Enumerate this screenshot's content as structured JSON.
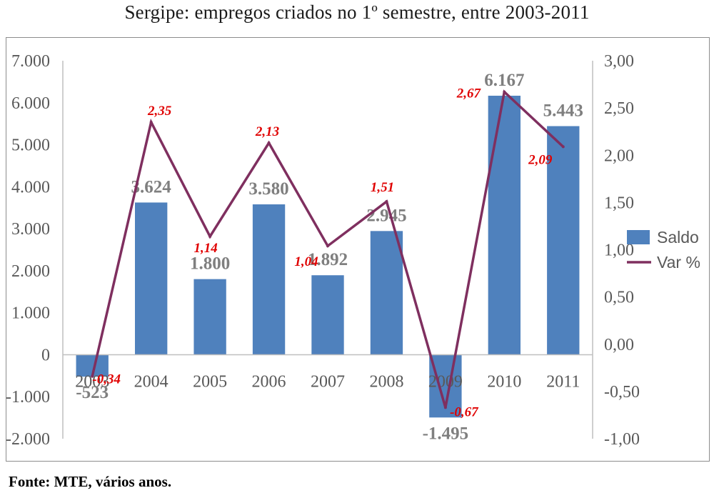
{
  "title": "Sergipe: empregos criados no 1º semestre, entre 2003-2011",
  "source": "Fonte: MTE, vários anos.",
  "colors": {
    "bar": "#4f81bd",
    "line": "#7f2f5f",
    "bar_label": "#7f7f7f",
    "line_label": "#e00000",
    "axis_text": "#595959",
    "gridline": "#bfbfbf"
  },
  "chart_data": {
    "type": "bar",
    "categories": [
      "2003",
      "2004",
      "2005",
      "2006",
      "2007",
      "2008",
      "2009",
      "2010",
      "2011"
    ],
    "series": [
      {
        "name": "Saldo",
        "type": "bar",
        "axis": "left",
        "values": [
          -523,
          3624,
          1800,
          3580,
          1892,
          2945,
          -1495,
          6167,
          5443
        ],
        "labels": [
          "-523",
          "3.624",
          "1.800",
          "3.580",
          "1.892",
          "2.945",
          "-1.495",
          "6.167",
          "5.443"
        ]
      },
      {
        "name": "Var %",
        "type": "line",
        "axis": "right",
        "values": [
          -0.34,
          2.35,
          1.14,
          2.13,
          1.04,
          1.51,
          -0.67,
          2.67,
          2.09
        ],
        "labels": [
          "-0,34",
          "2,35",
          "1,14",
          "2,13",
          "1,04",
          "1,51",
          "-0,67",
          "2,67",
          "2,09"
        ]
      }
    ],
    "y_left": {
      "ylim": [
        -2000,
        7000
      ],
      "ticks": [
        7000,
        6000,
        5000,
        4000,
        3000,
        2000,
        1000,
        0,
        -1000,
        -2000
      ],
      "tick_labels": [
        "7.000",
        "6.000",
        "5.000",
        "4.000",
        "3.000",
        "2.000",
        "1.000",
        "0",
        "-1.000",
        "-2.000"
      ]
    },
    "y_right": {
      "ylim": [
        -1.0,
        3.0
      ],
      "ticks": [
        3.0,
        2.5,
        2.0,
        1.5,
        1.0,
        0.5,
        0.0,
        -0.5,
        -1.0
      ],
      "tick_labels": [
        "3,00",
        "2,50",
        "2,00",
        "1,50",
        "1,00",
        "0,50",
        "0,00",
        "-0,50",
        "-1,00"
      ]
    },
    "legend": {
      "position": "right",
      "entries": [
        "Saldo",
        "Var %"
      ]
    },
    "grid": false
  }
}
